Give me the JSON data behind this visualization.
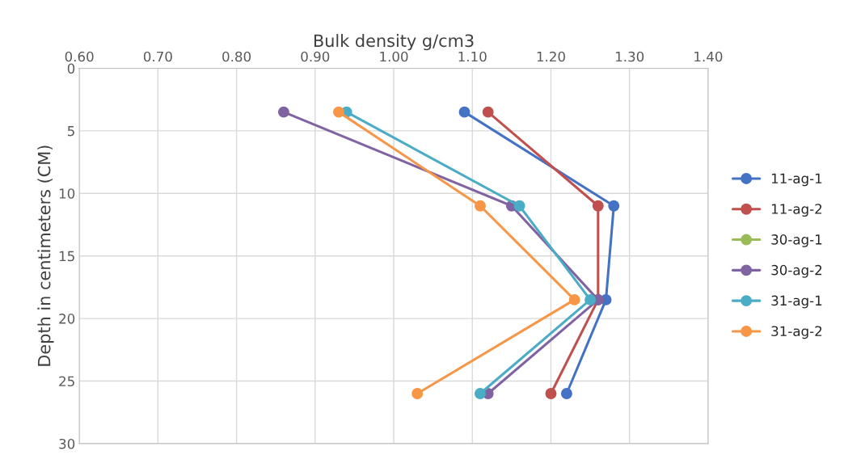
{
  "chart_data": {
    "type": "line",
    "xlabel": "Bulk density g/cm3",
    "ylabel": "Depth in centimeters (CM)",
    "series": [
      {
        "name": "11-ag-1",
        "color": "#4472c4",
        "x": [
          1.09,
          1.28,
          1.27,
          1.22
        ],
        "values": [
          3.5,
          11,
          18.5,
          26
        ]
      },
      {
        "name": "11-ag-2",
        "color": "#c0504d",
        "x": [
          1.12,
          1.26,
          1.26,
          1.2
        ],
        "values": [
          3.5,
          11,
          18.5,
          26
        ]
      },
      {
        "name": "30-ag-1",
        "color": "#9bbb59",
        "x": [
          null,
          null,
          null,
          null
        ],
        "values": [
          null,
          null,
          null,
          null
        ]
      },
      {
        "name": "30-ag-2",
        "color": "#8064a2",
        "x": [
          0.86,
          1.15,
          1.26,
          1.12
        ],
        "values": [
          3.5,
          11,
          18.5,
          26
        ]
      },
      {
        "name": "31-ag-1",
        "color": "#4bacc6",
        "x": [
          0.94,
          1.16,
          1.25,
          1.11
        ],
        "values": [
          3.5,
          11,
          18.5,
          26
        ]
      },
      {
        "name": "31-ag-2",
        "color": "#f79646",
        "x": [
          0.93,
          1.11,
          1.23,
          1.03
        ],
        "values": [
          3.5,
          11,
          18.5,
          26
        ]
      }
    ],
    "xlim": [
      0.6,
      1.4
    ],
    "xticks": [
      {
        "value": 0.6,
        "label": "0.60"
      },
      {
        "value": 0.7,
        "label": "0.70"
      },
      {
        "value": 0.8,
        "label": "0.80"
      },
      {
        "value": 0.9,
        "label": "0.90"
      },
      {
        "value": 1.0,
        "label": "1.00"
      },
      {
        "value": 1.1,
        "label": "1.10"
      },
      {
        "value": 1.2,
        "label": "1.20"
      },
      {
        "value": 1.3,
        "label": "1.30"
      },
      {
        "value": 1.4,
        "label": "1.40"
      }
    ],
    "ylim": [
      30,
      0
    ],
    "yticks": [
      0,
      5,
      10,
      15,
      20,
      25,
      30
    ],
    "grid": true,
    "legend": "right",
    "marker": "circle",
    "line_style": "solid"
  }
}
